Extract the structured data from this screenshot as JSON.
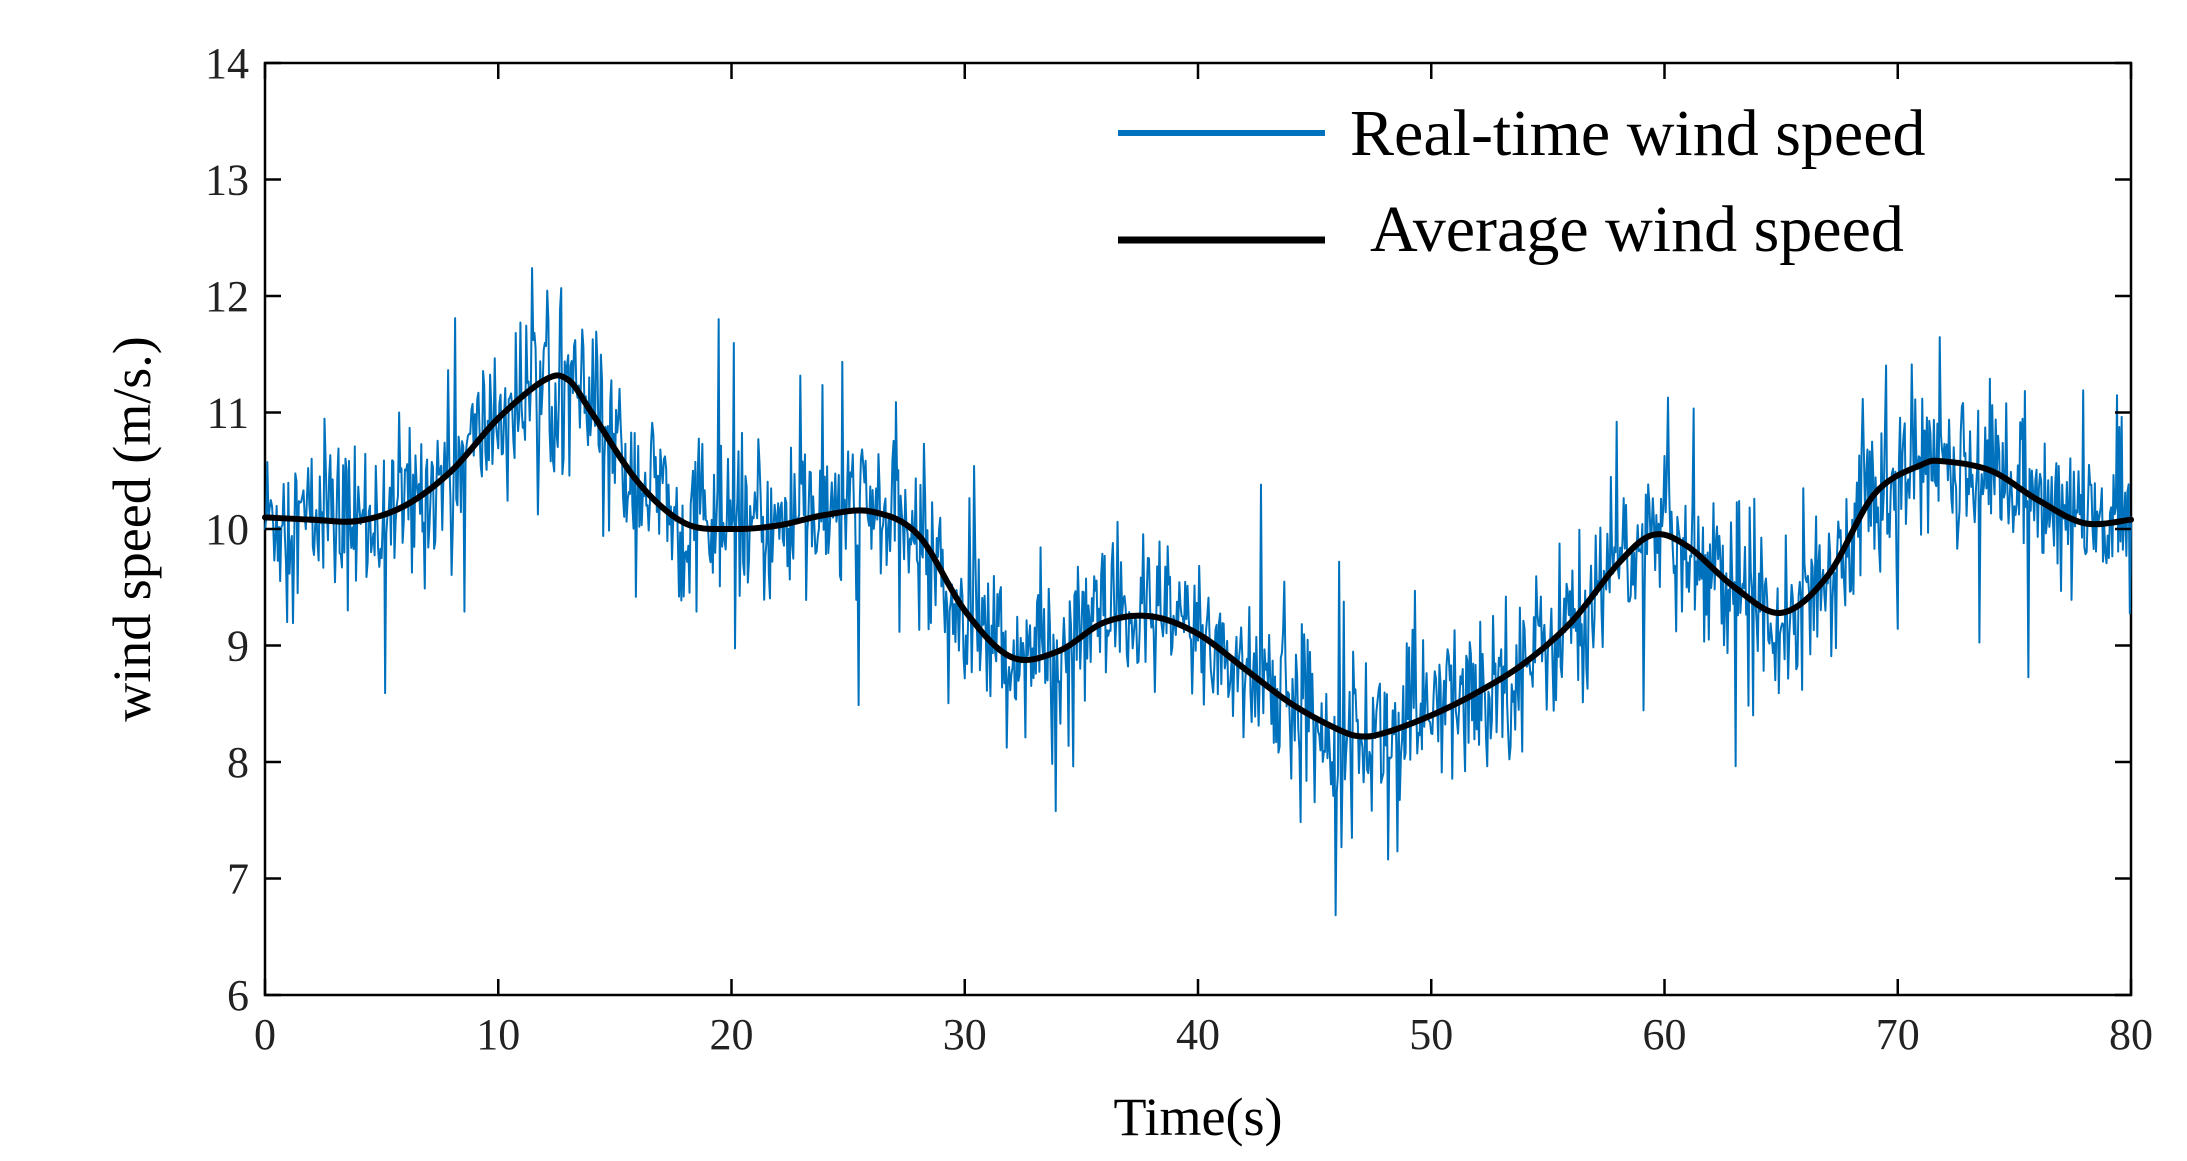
{
  "chart_data": {
    "type": "line",
    "title": "",
    "xlabel": "Time(s)",
    "ylabel": "wind speed (m/s.)",
    "xlim": [
      0,
      80
    ],
    "ylim": [
      6,
      14
    ],
    "x_ticks": [
      0,
      10,
      20,
      30,
      40,
      50,
      60,
      70,
      80
    ],
    "y_ticks": [
      6,
      7,
      8,
      9,
      10,
      11,
      12,
      13,
      14
    ],
    "x_tick_labels": [
      "0",
      "10",
      "20",
      "30",
      "40",
      "50",
      "60",
      "70",
      "80"
    ],
    "y_tick_labels": [
      "6",
      "7",
      "8",
      "9",
      "10",
      "11",
      "12",
      "13",
      "14"
    ],
    "grid": false,
    "legend_position": "top-right",
    "series": [
      {
        "name": "Real-time wind speed",
        "color": "#0072BD",
        "style": "noisy fluctuation around average, roughly ±1 m/s with spikes",
        "noise_amplitude": 0.55,
        "sample_count": 1600
      },
      {
        "name": "Average wind speed",
        "color": "#000000",
        "x": [
          0,
          2,
          4,
          6,
          8,
          10,
          12,
          13,
          14,
          16,
          18,
          20,
          22,
          24,
          26,
          28,
          30,
          32,
          34,
          36,
          38,
          40,
          42,
          44,
          46,
          47,
          48,
          50,
          52,
          54,
          56,
          58,
          59.5,
          61,
          63,
          65,
          67,
          69,
          71,
          72,
          74,
          76,
          78,
          80
        ],
        "values": [
          10.1,
          10.08,
          10.07,
          10.2,
          10.5,
          10.95,
          11.28,
          11.28,
          11.0,
          10.4,
          10.05,
          10.0,
          10.03,
          10.12,
          10.15,
          9.95,
          9.3,
          8.9,
          8.95,
          9.2,
          9.25,
          9.1,
          8.8,
          8.5,
          8.28,
          8.22,
          8.25,
          8.4,
          8.6,
          8.85,
          9.2,
          9.7,
          9.95,
          9.85,
          9.5,
          9.28,
          9.6,
          10.3,
          10.55,
          10.58,
          10.5,
          10.25,
          10.05,
          10.08
        ]
      }
    ]
  }
}
